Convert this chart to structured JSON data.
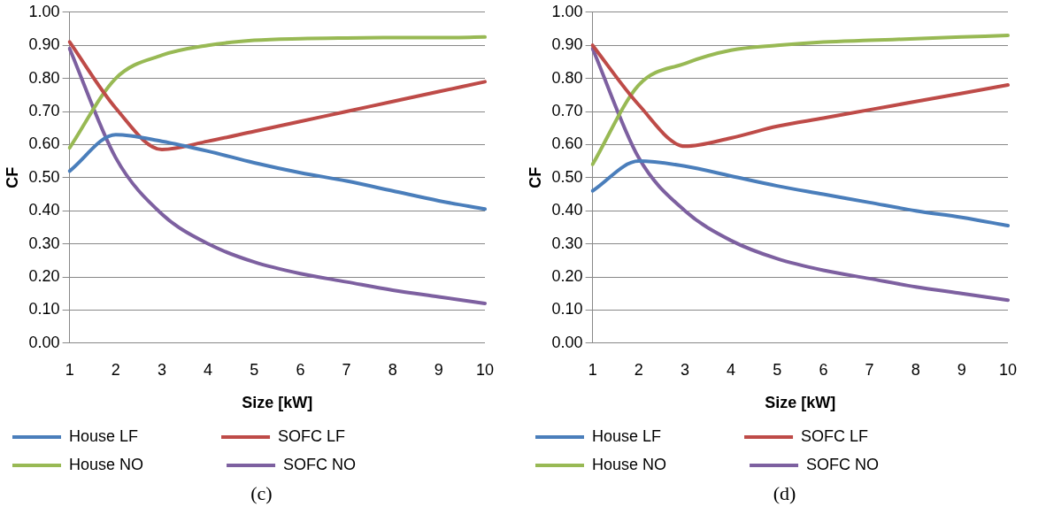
{
  "chart_data": [
    {
      "type": "line",
      "xlabel": "Size [kW]",
      "ylabel": "CF",
      "categories": [
        "1",
        "2",
        "3",
        "4",
        "5",
        "6",
        "7",
        "8",
        "9",
        "10"
      ],
      "ylim": [
        0,
        1
      ],
      "yticks": [
        {
          "value": 0,
          "label": "0.00"
        },
        {
          "value": 0.1,
          "label": "0.10"
        },
        {
          "value": 0.2,
          "label": "0.20"
        },
        {
          "value": 0.3,
          "label": "0.30"
        },
        {
          "value": 0.4,
          "label": "0.40"
        },
        {
          "value": 0.5,
          "label": "0.50"
        },
        {
          "value": 0.6,
          "label": "0.60"
        },
        {
          "value": 0.7,
          "label": "0.70"
        },
        {
          "value": 0.8,
          "label": "0.80"
        },
        {
          "value": 0.9,
          "label": "0.90"
        },
        {
          "value": 1,
          "label": "1.00"
        }
      ],
      "grid": "y",
      "legend": "bottom",
      "marker": "none",
      "annotations": [
        "(c)"
      ],
      "series": [
        {
          "name": "House LF",
          "color": "#4a7ebb",
          "values": [
            0.52,
            0.63,
            0.61,
            0.58,
            0.545,
            0.515,
            0.49,
            0.46,
            0.43,
            0.405
          ]
        },
        {
          "name": "SOFC LF",
          "color": "#be4b48",
          "values": [
            0.91,
            0.71,
            0.585,
            0.61,
            0.64,
            0.67,
            0.7,
            0.73,
            0.76,
            0.79
          ]
        },
        {
          "name": "House NO",
          "color": "#98b954",
          "values": [
            0.59,
            0.8,
            0.87,
            0.9,
            0.915,
            0.92,
            0.922,
            0.923,
            0.923,
            0.925
          ]
        },
        {
          "name": "SOFC NO",
          "color": "#7d60a0",
          "values": [
            0.89,
            0.56,
            0.39,
            0.3,
            0.245,
            0.21,
            0.185,
            0.16,
            0.14,
            0.12
          ]
        }
      ]
    },
    {
      "type": "line",
      "xlabel": "Size [kW]",
      "ylabel": "CF",
      "categories": [
        "1",
        "2",
        "3",
        "4",
        "5",
        "6",
        "7",
        "8",
        "9",
        "10"
      ],
      "ylim": [
        0,
        1
      ],
      "yticks": [
        {
          "value": 0,
          "label": "0.00"
        },
        {
          "value": 0.1,
          "label": "0.10"
        },
        {
          "value": 0.2,
          "label": "0.20"
        },
        {
          "value": 0.3,
          "label": "0.30"
        },
        {
          "value": 0.4,
          "label": "0.40"
        },
        {
          "value": 0.5,
          "label": "0.50"
        },
        {
          "value": 0.6,
          "label": "0.60"
        },
        {
          "value": 0.7,
          "label": "0.70"
        },
        {
          "value": 0.8,
          "label": "0.80"
        },
        {
          "value": 0.9,
          "label": "0.90"
        },
        {
          "value": 1,
          "label": "1.00"
        }
      ],
      "grid": "y",
      "legend": "bottom",
      "marker": "none",
      "annotations": [
        "(d)"
      ],
      "series": [
        {
          "name": "House LF",
          "color": "#4a7ebb",
          "values": [
            0.46,
            0.55,
            0.535,
            0.505,
            0.475,
            0.45,
            0.425,
            0.4,
            0.38,
            0.355
          ]
        },
        {
          "name": "SOFC LF",
          "color": "#be4b48",
          "values": [
            0.9,
            0.72,
            0.595,
            0.62,
            0.655,
            0.68,
            0.705,
            0.73,
            0.755,
            0.78
          ]
        },
        {
          "name": "House NO",
          "color": "#98b954",
          "values": [
            0.54,
            0.78,
            0.845,
            0.885,
            0.9,
            0.91,
            0.915,
            0.92,
            0.925,
            0.93
          ]
        },
        {
          "name": "SOFC NO",
          "color": "#7d60a0",
          "values": [
            0.89,
            0.56,
            0.4,
            0.31,
            0.255,
            0.22,
            0.195,
            0.17,
            0.15,
            0.13
          ]
        }
      ]
    }
  ]
}
